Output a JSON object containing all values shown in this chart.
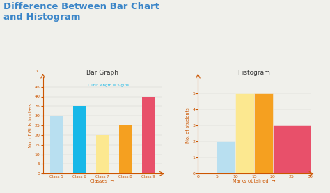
{
  "bg_color": "#f0f0eb",
  "title_text": "Difference Between Bar Chart\nand Histogram",
  "title_color": "#3a85c8",
  "title_fontsize": 9.5,
  "bar_graph": {
    "title": "Bar Graph",
    "categories": [
      "Class 5",
      "Class 6",
      "Class 7",
      "Class 8",
      "Class 9"
    ],
    "values": [
      30,
      35,
      20,
      25,
      40
    ],
    "colors": [
      "#b8dff0",
      "#18b8e8",
      "#fce890",
      "#f5a020",
      "#e8506a"
    ],
    "ylabel": "No. of Girls in class",
    "xlabel": "Classes",
    "ylim": [
      0,
      50
    ],
    "yticks": [
      0,
      5,
      10,
      15,
      20,
      25,
      30,
      35,
      40,
      45
    ],
    "annotation": "1 unit length = 5 girls",
    "annotation_color": "#18b8e8",
    "axis_color": "#cc5500",
    "label_color": "#cc5500",
    "tick_color": "#cc5500"
  },
  "histogram": {
    "title": "Histogram",
    "bin_edges": [
      0,
      5,
      10,
      15,
      20,
      25,
      30
    ],
    "values": [
      0,
      2,
      5,
      5,
      3,
      3
    ],
    "colors": [
      "#ffffff",
      "#b8dff0",
      "#fce890",
      "#f5a020",
      "#e8506a",
      "#e8506a"
    ],
    "ylabel": "No. of students",
    "xlabel": "Marks obtained",
    "ylim": [
      0,
      6
    ],
    "yticks": [
      0,
      1,
      2,
      3,
      4,
      5
    ],
    "xticks": [
      0,
      5,
      10,
      15,
      20,
      25,
      30
    ],
    "axis_color": "#cc5500",
    "label_color": "#cc5500",
    "tick_color": "#cc5500"
  }
}
